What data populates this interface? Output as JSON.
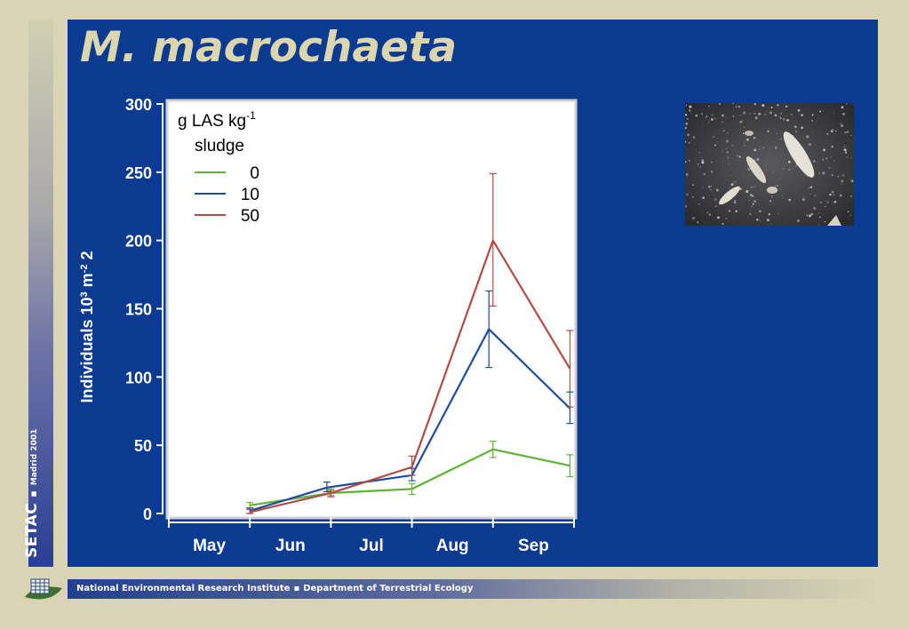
{
  "slide": {
    "title": "M. macrochaeta",
    "sidebar": {
      "org": "SETAC",
      "separator": "▪",
      "event": "Madrid 2001"
    },
    "footer": {
      "institute": "National Environmental Research Institute",
      "separator": "▪",
      "department": "Department of Terrestrial Ecology"
    }
  },
  "colors": {
    "background": "#d8d4b4",
    "main_panel": "#0b3a91",
    "title": "#dcd6ae",
    "series_0": "#5fb336",
    "series_10": "#1e4c9c",
    "series_50": "#b34b45"
  },
  "chart_data": {
    "type": "line",
    "ylabel": {
      "main": "Individuals 10",
      "sup1": "3",
      "mid": " m",
      "sup2": "-2",
      "tail": " 2"
    },
    "ylim": [
      0,
      300
    ],
    "yticks": [
      0,
      50,
      100,
      150,
      200,
      250,
      300
    ],
    "xlim": [
      0,
      5
    ],
    "month_labels": [
      "May",
      "Jun",
      "Jul",
      "Aug",
      "Sep"
    ],
    "legend": {
      "title_main": "g LAS kg",
      "title_sup": "-1",
      "title_line2": "sludge",
      "position": "top-left"
    },
    "series": [
      {
        "name": "0",
        "color": "#5fb336",
        "x": [
          1.0,
          2.0,
          3.0,
          4.0,
          4.95
        ],
        "y": [
          6,
          15,
          18,
          47,
          35
        ],
        "err_low": [
          4,
          12,
          14,
          41,
          27
        ],
        "err_high": [
          8,
          18,
          22,
          53,
          43
        ]
      },
      {
        "name": "10",
        "color": "#1e4c9c",
        "x": [
          1.0,
          1.95,
          3.0,
          3.95,
          4.95
        ],
        "y": [
          2,
          19,
          28,
          135,
          77
        ],
        "err_low": [
          0,
          16,
          24,
          107,
          66
        ],
        "err_high": [
          4,
          23,
          33,
          163,
          89
        ]
      },
      {
        "name": "50",
        "color": "#b34b45",
        "x": [
          1.0,
          2.0,
          3.0,
          4.0,
          4.95
        ],
        "y": [
          1,
          15,
          34,
          200,
          106
        ],
        "err_low": [
          0,
          13,
          28,
          152,
          78
        ],
        "err_high": [
          3,
          17,
          42,
          249,
          134
        ]
      }
    ]
  }
}
